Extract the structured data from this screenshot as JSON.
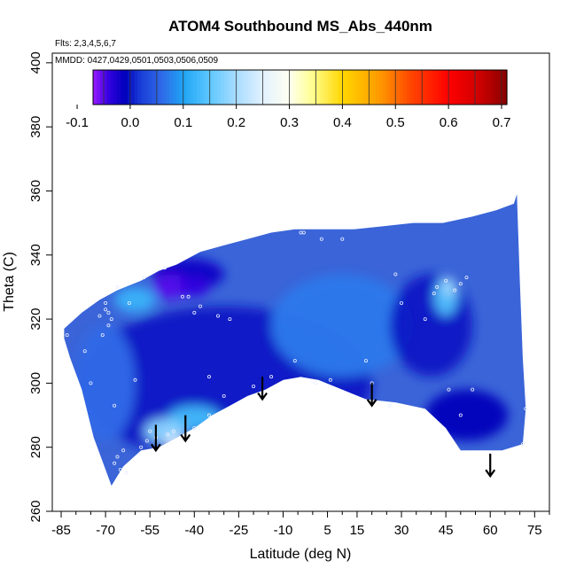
{
  "chart_data": {
    "type": "heatmap",
    "title": "ATOM4 Southbound MS_Abs_440nm",
    "flights_note": "Flts: 2,3,4,5,6,7",
    "dates_note": "MMDD: 0427,0429,0501,0503,0506,0509",
    "xlabel": "Latitude (deg N)",
    "ylabel": "Theta (C)",
    "xlim": [
      -88,
      80
    ],
    "ylim": [
      260,
      403
    ],
    "x_ticks_major": [
      -85,
      -70,
      -55,
      -40,
      -25,
      -10,
      5,
      15,
      30,
      45,
      60,
      75
    ],
    "x_ticks_minor": [
      -80,
      -75,
      -65,
      -60,
      -50,
      -45,
      -35,
      -30,
      -20,
      -15,
      -5,
      0,
      10,
      20,
      25,
      35,
      40,
      50,
      55,
      65,
      70,
      80
    ],
    "y_ticks": [
      260,
      280,
      300,
      320,
      340,
      360,
      380,
      400
    ],
    "colorbar": {
      "range": [
        -0.07,
        0.71
      ],
      "ticks": [
        -0.1,
        0.0,
        0.1,
        0.2,
        0.3,
        0.4,
        0.5,
        0.6,
        0.7
      ],
      "colors": [
        [
          -0.07,
          "#9a1aff"
        ],
        [
          -0.04,
          "#3300e0"
        ],
        [
          -0.01,
          "#0000bb"
        ],
        [
          0.02,
          "#1a3ed8"
        ],
        [
          0.06,
          "#2f6ae8"
        ],
        [
          0.1,
          "#1fa4f5"
        ],
        [
          0.15,
          "#5ec8ff"
        ],
        [
          0.2,
          "#a8dcff"
        ],
        [
          0.25,
          "#e2f2ff"
        ],
        [
          0.3,
          "#fffff0"
        ],
        [
          0.34,
          "#ffff99"
        ],
        [
          0.4,
          "#ffd700"
        ],
        [
          0.47,
          "#ff9a00"
        ],
        [
          0.53,
          "#ff4500"
        ],
        [
          0.6,
          "#ff0000"
        ],
        [
          0.66,
          "#cc0000"
        ],
        [
          0.71,
          "#880000"
        ]
      ]
    },
    "field_outline": [
      [
        -84,
        317
      ],
      [
        -78,
        322
      ],
      [
        -72,
        326
      ],
      [
        -66,
        329
      ],
      [
        -58,
        332
      ],
      [
        -52,
        335
      ],
      [
        -46,
        337
      ],
      [
        -38,
        341
      ],
      [
        -30,
        343
      ],
      [
        -22,
        345
      ],
      [
        -14,
        347
      ],
      [
        -6,
        348
      ],
      [
        4,
        348
      ],
      [
        14,
        348
      ],
      [
        24,
        349
      ],
      [
        34,
        350
      ],
      [
        44,
        350
      ],
      [
        54,
        352
      ],
      [
        62,
        354
      ],
      [
        68,
        356
      ],
      [
        69,
        359
      ],
      [
        70,
        332
      ],
      [
        71,
        308
      ],
      [
        72,
        292
      ],
      [
        71,
        281
      ],
      [
        64,
        279
      ],
      [
        50,
        279
      ],
      [
        45,
        286
      ],
      [
        38,
        292
      ],
      [
        28,
        294
      ],
      [
        18,
        295
      ],
      [
        10,
        298
      ],
      [
        2,
        301
      ],
      [
        -4,
        302
      ],
      [
        -10,
        301
      ],
      [
        -16,
        298
      ],
      [
        -22,
        296
      ],
      [
        -28,
        293
      ],
      [
        -34,
        290
      ],
      [
        -40,
        286
      ],
      [
        -46,
        283
      ],
      [
        -52,
        280
      ],
      [
        -58,
        279
      ],
      [
        -64,
        274
      ],
      [
        -68,
        268
      ],
      [
        -74,
        283
      ],
      [
        -78,
        298
      ],
      [
        -82,
        308
      ],
      [
        -84,
        314
      ]
    ],
    "field_blobs": [
      {
        "x": -30,
        "y": 300,
        "rx": 50,
        "ry": 24,
        "value": 0.0
      },
      {
        "x": 10,
        "y": 318,
        "rx": 24,
        "ry": 16,
        "value": 0.07
      },
      {
        "x": 40,
        "y": 318,
        "rx": 14,
        "ry": 16,
        "value": 0.0
      },
      {
        "x": 52,
        "y": 290,
        "rx": 14,
        "ry": 8,
        "value": -0.01
      },
      {
        "x": -42,
        "y": 334,
        "rx": 12,
        "ry": 5,
        "value": -0.02
      },
      {
        "x": -48,
        "y": 330,
        "rx": 6,
        "ry": 4,
        "value": -0.05
      },
      {
        "x": -40,
        "y": 330,
        "rx": 5,
        "ry": 3,
        "value": -0.04
      },
      {
        "x": -70,
        "y": 300,
        "rx": 10,
        "ry": 18,
        "value": 0.06
      },
      {
        "x": -60,
        "y": 326,
        "rx": 7,
        "ry": 4,
        "value": 0.12
      },
      {
        "x": -40,
        "y": 289,
        "rx": 9,
        "ry": 4,
        "value": 0.13
      },
      {
        "x": -50,
        "y": 285,
        "rx": 7,
        "ry": 4,
        "value": 0.18
      },
      {
        "x": -47,
        "y": 282,
        "rx": 3,
        "ry": 2,
        "value": 0.25
      },
      {
        "x": 45,
        "y": 327,
        "rx": 4,
        "ry": 6,
        "value": 0.14
      },
      {
        "x": 46,
        "y": 330,
        "rx": 2,
        "ry": 3,
        "value": 0.2
      }
    ],
    "sample_points": [
      [
        -83,
        315
      ],
      [
        -77,
        310
      ],
      [
        -75,
        300
      ],
      [
        -72,
        321
      ],
      [
        -70,
        323
      ],
      [
        -70,
        325
      ],
      [
        -69,
        322
      ],
      [
        -68,
        320
      ],
      [
        -69,
        318
      ],
      [
        -71,
        315
      ],
      [
        -62,
        325
      ],
      [
        -66,
        330
      ],
      [
        -57,
        333
      ],
      [
        -50,
        336
      ],
      [
        -44,
        327
      ],
      [
        -42,
        327
      ],
      [
        -38,
        324
      ],
      [
        -40,
        322
      ],
      [
        -32,
        321
      ],
      [
        -28,
        320
      ],
      [
        -35,
        302
      ],
      [
        -30,
        296
      ],
      [
        -20,
        299
      ],
      [
        -14,
        302
      ],
      [
        -6,
        307
      ],
      [
        1,
        300
      ],
      [
        6,
        301
      ],
      [
        -4,
        347
      ],
      [
        -3,
        347
      ],
      [
        3,
        345
      ],
      [
        10,
        345
      ],
      [
        18,
        307
      ],
      [
        20,
        300
      ],
      [
        26,
        293
      ],
      [
        28,
        334
      ],
      [
        30,
        325
      ],
      [
        38,
        320
      ],
      [
        41,
        328
      ],
      [
        42,
        330
      ],
      [
        45,
        332
      ],
      [
        48,
        329
      ],
      [
        50,
        331
      ],
      [
        52,
        333
      ],
      [
        46,
        298
      ],
      [
        50,
        290
      ],
      [
        54,
        298
      ],
      [
        72,
        292
      ],
      [
        71,
        281
      ],
      [
        -58,
        280
      ],
      [
        -56,
        282
      ],
      [
        -55,
        285
      ],
      [
        -53,
        283
      ],
      [
        -49,
        284
      ],
      [
        -47,
        285
      ],
      [
        -40,
        286
      ],
      [
        -35,
        290
      ],
      [
        -64,
        279
      ],
      [
        -66,
        277
      ],
      [
        -67,
        275
      ],
      [
        -65,
        273
      ],
      [
        -63,
        272
      ],
      [
        -67,
        293
      ],
      [
        -60,
        301
      ]
    ],
    "arrows": [
      {
        "x": -53,
        "y_top": 287,
        "y_bottom": 279
      },
      {
        "x": -43,
        "y_top": 290,
        "y_bottom": 282
      },
      {
        "x": -17,
        "y_top": 302,
        "y_bottom": 295
      },
      {
        "x": 20,
        "y_top": 300,
        "y_bottom": 293
      },
      {
        "x": 60,
        "y_top": 278,
        "y_bottom": 271
      }
    ]
  }
}
